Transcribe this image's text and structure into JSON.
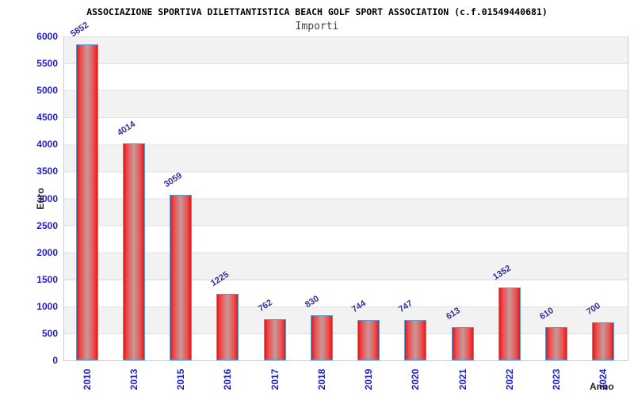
{
  "header": {
    "title": "ASSOCIAZIONE SPORTIVA DILETTANTISTICA BEACH GOLF SPORT ASSOCIATION (c.f.01549440681)",
    "subtitle": "Importi"
  },
  "chart_data": {
    "type": "bar",
    "title": "Importi",
    "categories": [
      "2010",
      "2013",
      "2015",
      "2016",
      "2017",
      "2018",
      "2019",
      "2020",
      "2021",
      "2022",
      "2023",
      "2024"
    ],
    "values": [
      5852,
      4014,
      3059,
      1225,
      762,
      830,
      744,
      747,
      613,
      1352,
      610,
      700
    ],
    "xlabel": "Anno",
    "ylabel": "Euro",
    "ylim": [
      0,
      6000
    ],
    "ytick_step": 500,
    "yticks": [
      0,
      500,
      1000,
      1500,
      2000,
      2500,
      3000,
      3500,
      4000,
      4500,
      5000,
      5500,
      6000
    ],
    "grid": true,
    "legend_position": "none",
    "background_bands": "alternating"
  },
  "colors": {
    "tick_label_blue": "#2222cc",
    "value_label_blue": "#333399",
    "bar_edge_red": "#e01818",
    "bar_center": "#c59a9a",
    "bar_border_blue": "#5b9bd5",
    "band_gray": "#f2f2f2",
    "gridline": "#e0e0e0",
    "axis_line": "#cccccc",
    "title_color": "#000000",
    "subtitle_color": "#404040"
  }
}
